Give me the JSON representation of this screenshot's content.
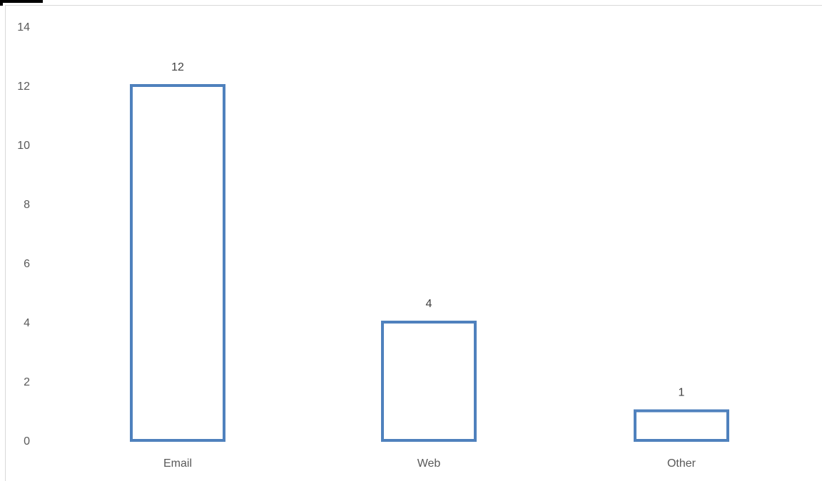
{
  "chart_data": {
    "type": "bar",
    "categories": [
      "Email",
      "Web",
      "Other"
    ],
    "values": [
      12,
      4,
      1
    ],
    "data_labels": [
      "12",
      "4",
      "1"
    ],
    "ylim": [
      0,
      14
    ],
    "yticks": [
      0,
      2,
      4,
      6,
      8,
      10,
      12,
      14
    ],
    "ytick_labels": [
      "0",
      "2",
      "4",
      "6",
      "8",
      "10",
      "12",
      "14"
    ],
    "grid": false,
    "legend": "none",
    "bar_style": "outline",
    "bar_stroke_color": "#4F81BD",
    "bar_fill_color": "#FFFFFF",
    "frame_color": "#D9D9D9",
    "text_color": "#595959"
  }
}
